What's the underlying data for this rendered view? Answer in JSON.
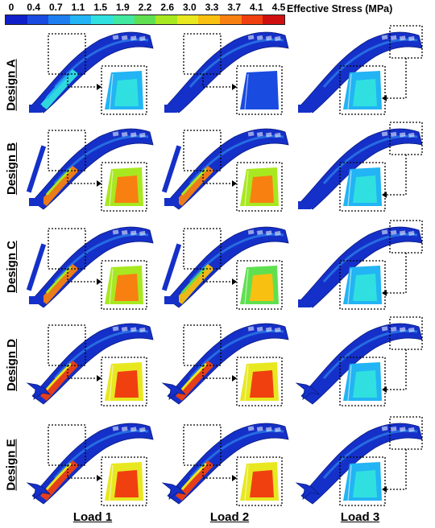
{
  "legend": {
    "title": "Effective Stress (MPa)",
    "ticks": [
      "0",
      "0.4",
      "0.7",
      "1.1",
      "1.5",
      "1.9",
      "2.2",
      "2.6",
      "3.0",
      "3.3",
      "3.7",
      "4.1",
      "4.5"
    ],
    "colors": [
      "#1020c8",
      "#1a4be0",
      "#1e7ef0",
      "#22b4f4",
      "#30e0e0",
      "#40e8a0",
      "#60e050",
      "#a8e820",
      "#e8e820",
      "#f8c010",
      "#f88010",
      "#f04010",
      "#d01010"
    ]
  },
  "rows": [
    {
      "label": "Design A",
      "levels": [
        0.3,
        0.1,
        0.15
      ],
      "style": "truss"
    },
    {
      "label": "Design B",
      "levels": [
        0.85,
        0.85,
        0.2
      ],
      "style": "post"
    },
    {
      "label": "Design C",
      "levels": [
        0.8,
        0.75,
        0.2
      ],
      "style": "post"
    },
    {
      "label": "Design D",
      "levels": [
        0.95,
        0.92,
        0.15
      ],
      "style": "tree"
    },
    {
      "label": "Design E",
      "levels": [
        0.95,
        0.95,
        0.15
      ],
      "style": "tree"
    }
  ],
  "columns": [
    "Load 1",
    "Load 2",
    "Load 3"
  ]
}
